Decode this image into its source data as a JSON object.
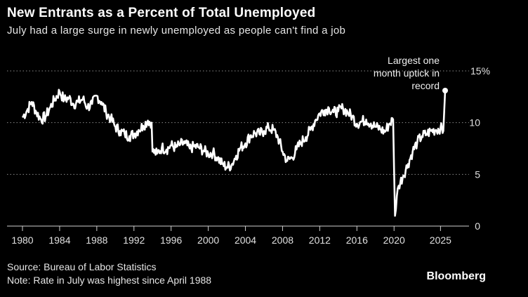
{
  "header": {
    "title": "New Entrants as a Percent of Total Unemployed",
    "subtitle": "July had a large surge in newly unemployed as people can't find a job"
  },
  "footer": {
    "source": "Source: Bureau of Labor Statistics",
    "note": "Note: Rate in July was highest since April 1988",
    "brand": "Bloomberg"
  },
  "chart_data": {
    "type": "line",
    "title": "New Entrants as a Percent of Total Unemployed",
    "subtitle": "July had a large surge in newly unemployed as people can't find a job",
    "xlabel": "",
    "ylabel": "",
    "xlim": [
      1980,
      2025.6
    ],
    "ylim": [
      0,
      15
    ],
    "x_ticks": [
      "1980",
      "1984",
      "1988",
      "1992",
      "1996",
      "2000",
      "2004",
      "2008",
      "2012",
      "2016",
      "2020",
      "2025"
    ],
    "y_ticks": [
      "0",
      "5",
      "10",
      "15%"
    ],
    "grid": "horizontal dotted",
    "line_color": "#ffffff",
    "annotation": {
      "text_lines": [
        "Largest one",
        "month uptick in",
        "record"
      ],
      "x": 2025.5,
      "y": 13.1
    },
    "series": [
      {
        "x": [
          1980,
          1980.5,
          1981,
          1981.5,
          1982,
          1982.5,
          1983,
          1983.5,
          1984,
          1984.5,
          1985,
          1985.5,
          1986,
          1986.5,
          1987,
          1987.5,
          1988,
          1988.5,
          1989,
          1989.5,
          1990,
          1990.5,
          1991,
          1991.5,
          1992,
          1992.5,
          1993,
          1993.5,
          1993.9,
          1994,
          1994.5,
          1995,
          1995.5,
          1996,
          1996.5,
          1997,
          1997.5,
          1998,
          1998.5,
          1999,
          1999.5,
          2000,
          2000.5,
          2001,
          2001.5,
          2002,
          2002.5,
          2003,
          2003.5,
          2004,
          2004.5,
          2005,
          2005.5,
          2006,
          2006.5,
          2007,
          2007.5,
          2008,
          2008.5,
          2009,
          2009.5,
          2010,
          2010.5,
          2011,
          2011.5,
          2012,
          2012.5,
          2013,
          2013.5,
          2014,
          2014.5,
          2015,
          2015.5,
          2016,
          2016.5,
          2017,
          2017.5,
          2018,
          2018.5,
          2019,
          2019.5,
          2019.9,
          2020.1,
          2020.3,
          2020.5,
          2021,
          2021.5,
          2022,
          2022.5,
          2023,
          2023.5,
          2024,
          2024.5,
          2025,
          2025.3,
          2025.5
        ],
        "y": [
          10.5,
          11.2,
          12.0,
          11.0,
          10.3,
          10.6,
          11.5,
          12.3,
          13.0,
          12.2,
          12.4,
          11.8,
          12.0,
          12.3,
          11.5,
          11.8,
          12.6,
          12.0,
          11.0,
          10.4,
          9.6,
          9.2,
          8.9,
          8.7,
          8.9,
          9.3,
          9.7,
          10.2,
          10.0,
          7.2,
          7.0,
          7.6,
          7.4,
          7.8,
          7.6,
          7.9,
          8.0,
          7.5,
          7.7,
          7.6,
          7.3,
          7.0,
          7.1,
          6.6,
          6.0,
          5.7,
          5.9,
          6.8,
          7.6,
          8.0,
          8.7,
          9.0,
          8.9,
          9.2,
          9.5,
          9.3,
          8.6,
          7.2,
          6.3,
          6.6,
          7.4,
          8.1,
          8.6,
          9.3,
          10.2,
          10.9,
          11.2,
          11.4,
          11.0,
          11.1,
          11.4,
          11.0,
          10.6,
          9.9,
          10.1,
          10.3,
          9.9,
          9.6,
          9.4,
          9.1,
          9.9,
          10.3,
          1.0,
          2.9,
          3.9,
          4.9,
          6.0,
          7.2,
          8.1,
          8.7,
          8.9,
          9.2,
          9.3,
          9.5,
          9.2,
          13.1
        ]
      }
    ]
  }
}
